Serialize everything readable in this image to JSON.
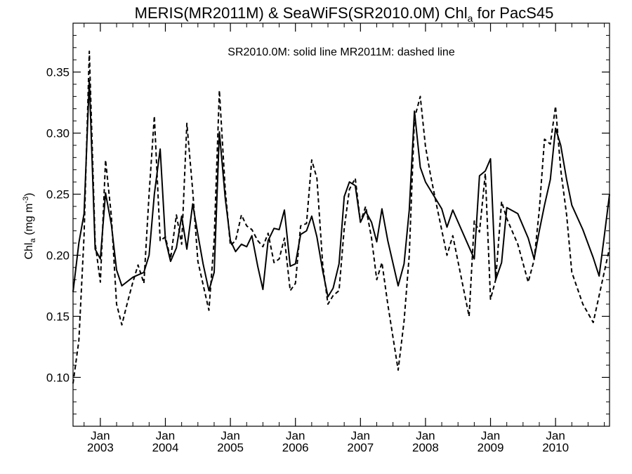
{
  "chart_data": {
    "type": "line",
    "title_main": "MERIS(MR2011M) & SeaWiFS(SR2010.0M)  Chl",
    "title_sub": "a",
    "title_tail": " for PacS45",
    "annotation": "SR2010.0M: solid line   MR2011M: dashed line",
    "ylabel_main": "Chl",
    "ylabel_sub": "a",
    "ylabel_units": " (mg m",
    "ylabel_units_sup": "-3",
    "ylabel_close": ")",
    "ylim": [
      0.06,
      0.39
    ],
    "y_ticks": [
      "0.10",
      "0.15",
      "0.20",
      "0.25",
      "0.30",
      "0.35"
    ],
    "xlim": [
      2002.58,
      2010.83
    ],
    "x_ticks": [
      {
        "month": "Jan",
        "year": "2003",
        "x": 2003.0
      },
      {
        "month": "Jan",
        "year": "2004",
        "x": 2004.0
      },
      {
        "month": "Jan",
        "year": "2005",
        "x": 2005.0
      },
      {
        "month": "Jan",
        "year": "2006",
        "x": 2006.0
      },
      {
        "month": "Jan",
        "year": "2007",
        "x": 2007.0
      },
      {
        "month": "Jan",
        "year": "2008",
        "x": 2008.0
      },
      {
        "month": "Jan",
        "year": "2009",
        "x": 2009.0
      },
      {
        "month": "Jan",
        "year": "2010",
        "x": 2010.0
      }
    ],
    "series": [
      {
        "name": "SR2010.0M",
        "style": "solid",
        "x": [
          2002.58,
          2002.67,
          2002.75,
          2002.83,
          2002.92,
          2003.0,
          2003.08,
          2003.17,
          2003.25,
          2003.33,
          2003.5,
          2003.67,
          2003.75,
          2003.83,
          2003.92,
          2004.0,
          2004.08,
          2004.17,
          2004.25,
          2004.33,
          2004.42,
          2004.5,
          2004.58,
          2004.67,
          2004.75,
          2004.83,
          2004.92,
          2005.0,
          2005.08,
          2005.17,
          2005.25,
          2005.33,
          2005.42,
          2005.5,
          2005.58,
          2005.67,
          2005.75,
          2005.83,
          2005.92,
          2006.0,
          2006.08,
          2006.17,
          2006.25,
          2006.33,
          2006.42,
          2006.5,
          2006.58,
          2006.67,
          2006.75,
          2006.83,
          2006.92,
          2007.0,
          2007.08,
          2007.17,
          2007.25,
          2007.33,
          2007.42,
          2007.58,
          2007.67,
          2007.75,
          2007.83,
          2007.92,
          2008.0,
          2008.25,
          2008.33,
          2008.42,
          2008.75,
          2008.83,
          2008.92,
          2009.0,
          2009.08,
          2009.17,
          2009.25,
          2009.42,
          2009.58,
          2009.67,
          2009.75,
          2009.83,
          2009.92,
          2010.0,
          2010.08,
          2010.17,
          2010.25,
          2010.42,
          2010.58,
          2010.67,
          2010.75,
          2010.83
        ],
        "values": [
          0.17,
          0.21,
          0.234,
          0.343,
          0.205,
          0.197,
          0.251,
          0.225,
          0.188,
          0.175,
          0.182,
          0.186,
          0.2,
          0.25,
          0.287,
          0.213,
          0.195,
          0.206,
          0.232,
          0.205,
          0.242,
          0.217,
          0.193,
          0.171,
          0.186,
          0.301,
          0.247,
          0.212,
          0.203,
          0.209,
          0.207,
          0.216,
          0.191,
          0.172,
          0.212,
          0.222,
          0.221,
          0.237,
          0.191,
          0.193,
          0.217,
          0.22,
          0.232,
          0.215,
          0.187,
          0.166,
          0.173,
          0.193,
          0.248,
          0.26,
          0.257,
          0.227,
          0.236,
          0.227,
          0.211,
          0.238,
          0.212,
          0.175,
          0.193,
          0.237,
          0.318,
          0.272,
          0.26,
          0.238,
          0.223,
          0.237,
          0.197,
          0.265,
          0.269,
          0.279,
          0.18,
          0.194,
          0.239,
          0.234,
          0.214,
          0.197,
          0.22,
          0.241,
          0.262,
          0.304,
          0.29,
          0.262,
          0.241,
          0.221,
          0.198,
          0.183,
          0.216,
          0.25
        ]
      },
      {
        "name": "MR2011M",
        "style": "dashed",
        "x": [
          2002.58,
          2002.67,
          2002.75,
          2002.83,
          2002.92,
          2003.0,
          2003.08,
          2003.17,
          2003.25,
          2003.33,
          2003.42,
          2003.5,
          2003.58,
          2003.67,
          2003.75,
          2003.83,
          2003.92,
          2004.0,
          2004.08,
          2004.17,
          2004.25,
          2004.33,
          2004.42,
          2004.5,
          2004.58,
          2004.67,
          2004.75,
          2004.83,
          2004.92,
          2005.0,
          2005.08,
          2005.17,
          2005.25,
          2005.33,
          2005.42,
          2005.5,
          2005.58,
          2005.67,
          2005.75,
          2005.83,
          2005.92,
          2006.0,
          2006.08,
          2006.17,
          2006.25,
          2006.33,
          2006.42,
          2006.5,
          2006.58,
          2006.67,
          2006.75,
          2006.83,
          2006.92,
          2007.0,
          2007.08,
          2007.17,
          2007.25,
          2007.33,
          2007.42,
          2007.58,
          2007.67,
          2007.75,
          2007.83,
          2007.92,
          2008.0,
          2008.08,
          2008.17,
          2008.33,
          2008.42,
          2008.67,
          2008.75,
          2008.83,
          2008.92,
          2009.0,
          2009.08,
          2009.17,
          2009.25,
          2009.42,
          2009.58,
          2009.67,
          2009.75,
          2009.83,
          2009.92,
          2010.0,
          2010.08,
          2010.17,
          2010.25,
          2010.42,
          2010.58,
          2010.67,
          2010.83
        ],
        "values": [
          0.095,
          0.13,
          0.216,
          0.367,
          0.21,
          0.178,
          0.278,
          0.232,
          0.16,
          0.143,
          0.162,
          0.178,
          0.192,
          0.177,
          0.25,
          0.314,
          0.212,
          0.215,
          0.197,
          0.233,
          0.209,
          0.308,
          0.253,
          0.195,
          0.176,
          0.155,
          0.213,
          0.335,
          0.254,
          0.208,
          0.212,
          0.233,
          0.224,
          0.221,
          0.212,
          0.207,
          0.218,
          0.194,
          0.197,
          0.214,
          0.171,
          0.177,
          0.224,
          0.226,
          0.278,
          0.263,
          0.192,
          0.16,
          0.167,
          0.171,
          0.222,
          0.254,
          0.263,
          0.227,
          0.24,
          0.214,
          0.18,
          0.194,
          0.16,
          0.106,
          0.146,
          0.2,
          0.312,
          0.33,
          0.289,
          0.265,
          0.241,
          0.2,
          0.216,
          0.15,
          0.228,
          0.219,
          0.267,
          0.164,
          0.18,
          0.244,
          0.23,
          0.209,
          0.178,
          0.196,
          0.237,
          0.295,
          0.291,
          0.322,
          0.27,
          0.233,
          0.186,
          0.16,
          0.145,
          0.167,
          0.206
        ]
      }
    ]
  }
}
